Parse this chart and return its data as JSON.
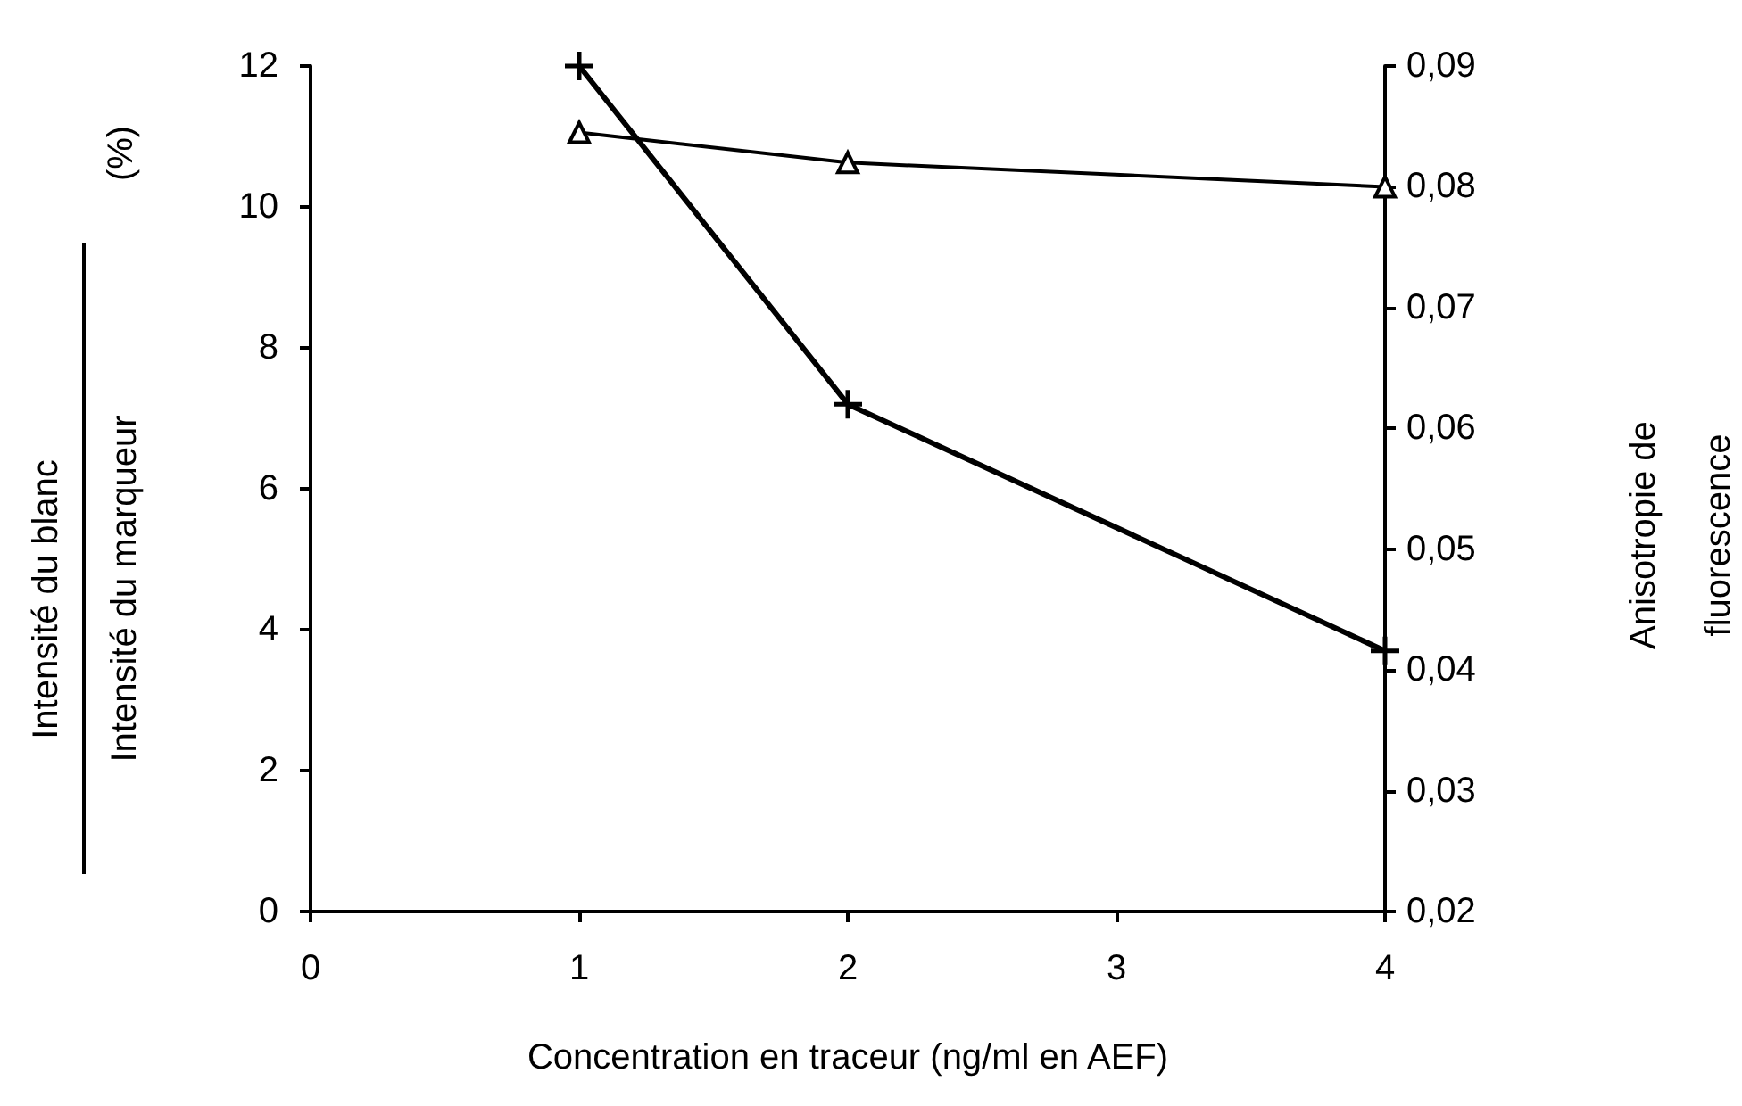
{
  "chart_data": {
    "type": "line",
    "xlabel": "Concentration en traceur (ng/ml en AEF)",
    "ylabel": "Intensité du blanc\nIntensité du marqueur (%)",
    "y2label": "Anisotropie de\nfluorescence",
    "x": [
      1,
      2,
      4
    ],
    "series": [
      {
        "color": "#000000",
        "marker": "cross",
        "values": [
          12,
          7.2,
          3.7
        ]
      },
      {
        "color": "#000000",
        "marker": "triangle",
        "axis": "y2",
        "values": [
          0.0845,
          0.082,
          0.08
        ]
      }
    ],
    "xlim": [
      0,
      4
    ],
    "xticks": [
      0,
      1,
      2,
      3,
      4
    ],
    "ylim": [
      0,
      12
    ],
    "yticks": [
      0,
      2,
      4,
      6,
      8,
      10,
      12
    ],
    "y2lim": [
      0.02,
      0.09
    ],
    "y2ticks": [
      {
        "value": 0.02,
        "label": "0,02"
      },
      {
        "value": 0.03,
        "label": "0,03"
      },
      {
        "value": 0.04,
        "label": "0,04"
      },
      {
        "value": 0.05,
        "label": "0,05"
      },
      {
        "value": 0.06,
        "label": "0,06"
      },
      {
        "value": 0.07,
        "label": "0,07"
      },
      {
        "value": 0.08,
        "label": "0,08"
      },
      {
        "value": 0.09,
        "label": "0,09"
      }
    ],
    "grid": false,
    "line_style": "solid"
  }
}
